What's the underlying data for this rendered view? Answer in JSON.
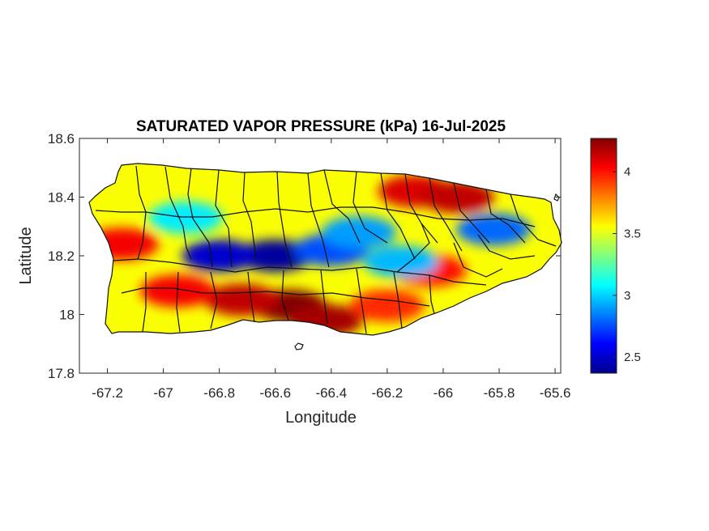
{
  "chart_data": {
    "type": "heatmap",
    "title": "SATURATED VAPOR PRESSURE (kPa) 16-Jul-2025",
    "xlabel": "Longitude",
    "ylabel": "Latitude",
    "xlim": [
      -67.3,
      -65.58
    ],
    "ylim": [
      17.8,
      18.6
    ],
    "xticks": [
      "-67.2",
      "-67",
      "-66.8",
      "-66.6",
      "-66.4",
      "-66.2",
      "-66",
      "-65.8",
      "-65.6"
    ],
    "xtick_values": [
      -67.2,
      -67.0,
      -66.8,
      -66.6,
      -66.4,
      -66.2,
      -66.0,
      -65.8,
      -65.6
    ],
    "yticks": [
      "18.6",
      "18.4",
      "18.2",
      "18",
      "17.8"
    ],
    "ytick_values": [
      18.6,
      18.4,
      18.2,
      18.0,
      17.8
    ],
    "colorbar": {
      "colormap": "jet",
      "range": [
        2.37,
        4.27
      ],
      "ticks": [
        "4",
        "3.5",
        "3",
        "2.5"
      ],
      "tick_values": [
        4.0,
        3.5,
        3.0,
        2.5
      ]
    },
    "field_features": [
      {
        "description": "high",
        "lon": -66.55,
        "lat": 18.03,
        "value": 4.27
      },
      {
        "description": "high",
        "lon": -66.72,
        "lat": 18.05,
        "value": 4.15
      },
      {
        "description": "high",
        "lon": -66.42,
        "lat": 17.98,
        "value": 4.2
      },
      {
        "description": "high",
        "lon": -66.95,
        "lat": 18.08,
        "value": 4.05
      },
      {
        "description": "high",
        "lon": -67.15,
        "lat": 18.24,
        "value": 4.05
      },
      {
        "description": "high",
        "lon": -66.1,
        "lat": 18.42,
        "value": 4.1
      },
      {
        "description": "high",
        "lon": -65.95,
        "lat": 18.4,
        "value": 4.15
      },
      {
        "description": "high",
        "lon": -66.05,
        "lat": 18.15,
        "value": 4.0
      },
      {
        "description": "high",
        "lon": -66.2,
        "lat": 18.03,
        "value": 3.95
      },
      {
        "description": "low",
        "lon": -66.6,
        "lat": 18.2,
        "value": 2.4
      },
      {
        "description": "low",
        "lon": -66.8,
        "lat": 18.2,
        "value": 2.5
      },
      {
        "description": "low",
        "lon": -66.4,
        "lat": 18.22,
        "value": 2.75
      },
      {
        "description": "low",
        "lon": -66.15,
        "lat": 18.18,
        "value": 2.95
      },
      {
        "description": "low",
        "lon": -65.82,
        "lat": 18.29,
        "value": 2.8
      },
      {
        "description": "low",
        "lon": -66.92,
        "lat": 18.33,
        "value": 3.05
      },
      {
        "description": "low",
        "lon": -66.3,
        "lat": 18.28,
        "value": 2.9
      }
    ],
    "background_value": 3.55,
    "grid": false,
    "colorbar_position": "right"
  }
}
